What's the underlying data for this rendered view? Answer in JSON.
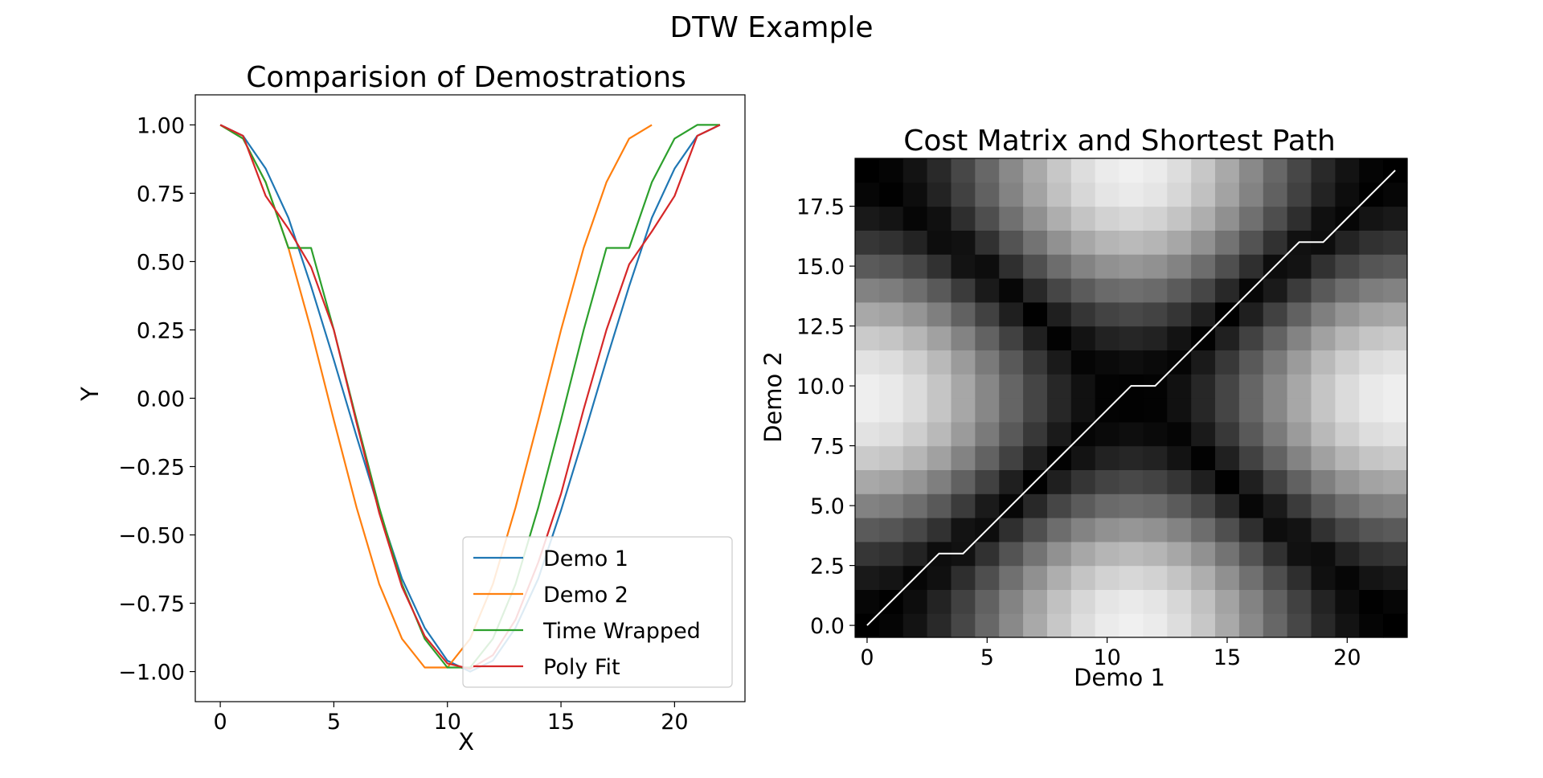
{
  "suptitle": "DTW Example",
  "chart_data": [
    {
      "type": "line",
      "title": "Comparision of Demostrations",
      "xlabel": "X",
      "ylabel": "Y",
      "xlim": [
        -1.1,
        23.1
      ],
      "ylim": [
        -1.11,
        1.11
      ],
      "xticks": [
        0,
        5,
        10,
        15,
        20
      ],
      "xtick_labels": [
        "0",
        "5",
        "10",
        "15",
        "20"
      ],
      "yticks": [
        1.0,
        0.75,
        0.5,
        0.25,
        0.0,
        -0.25,
        -0.5,
        -0.75,
        -1.0
      ],
      "ytick_labels": [
        "1.00",
        "0.75",
        "0.50",
        "0.25",
        "0.00",
        "−0.25",
        "−0.50",
        "−0.75",
        "−1.00"
      ],
      "grid": false,
      "legend_position": "lower-right",
      "series": [
        {
          "name": "Demo 1",
          "color": "#1f77b4",
          "x": [
            0,
            1,
            2,
            3,
            4,
            5,
            6,
            7,
            8,
            9,
            10,
            11,
            12,
            13,
            14,
            15,
            16,
            17,
            18,
            19,
            20,
            21,
            22
          ],
          "y": [
            1.0,
            0.96,
            0.84,
            0.66,
            0.41,
            0.14,
            -0.14,
            -0.41,
            -0.66,
            -0.84,
            -0.96,
            -1.0,
            -0.96,
            -0.84,
            -0.66,
            -0.41,
            -0.14,
            0.14,
            0.41,
            0.66,
            0.84,
            0.96,
            1.0
          ]
        },
        {
          "name": "Demo 2",
          "color": "#ff7f0e",
          "x": [
            0,
            1,
            2,
            3,
            4,
            5,
            6,
            7,
            8,
            9,
            10,
            11,
            12,
            13,
            14,
            15,
            16,
            17,
            18,
            19
          ],
          "y": [
            1.0,
            0.95,
            0.79,
            0.55,
            0.25,
            -0.08,
            -0.4,
            -0.68,
            -0.88,
            -0.985,
            -0.985,
            -0.88,
            -0.68,
            -0.4,
            -0.08,
            0.25,
            0.55,
            0.79,
            0.95,
            1.0
          ]
        },
        {
          "name": "Time Wrapped",
          "color": "#2ca02c",
          "x": [
            0,
            1,
            2,
            3,
            4,
            5,
            6,
            7,
            8,
            9,
            10,
            11,
            12,
            13,
            14,
            15,
            16,
            17,
            18,
            19,
            20,
            21,
            22
          ],
          "y": [
            1.0,
            0.95,
            0.79,
            0.55,
            0.55,
            0.25,
            -0.08,
            -0.4,
            -0.68,
            -0.88,
            -0.985,
            -0.985,
            -0.88,
            -0.68,
            -0.4,
            -0.08,
            0.25,
            0.55,
            0.55,
            0.79,
            0.95,
            1.0,
            1.0
          ]
        },
        {
          "name": "Poly Fit",
          "color": "#d62728",
          "x": [
            0,
            1,
            2,
            3,
            4,
            5,
            6,
            7,
            8,
            9,
            10,
            11,
            12,
            13,
            14,
            15,
            16,
            17,
            18,
            19,
            20,
            21,
            22
          ],
          "y": [
            1.0,
            0.96,
            0.74,
            0.62,
            0.48,
            0.25,
            -0.09,
            -0.42,
            -0.69,
            -0.87,
            -0.97,
            -0.99,
            -0.94,
            -0.81,
            -0.6,
            -0.35,
            -0.04,
            0.25,
            0.49,
            0.61,
            0.74,
            0.96,
            1.0
          ]
        }
      ]
    },
    {
      "type": "heatmap",
      "title": "Cost Matrix and Shortest Path",
      "xlabel": "Demo 1",
      "ylabel": "Demo 2",
      "xlim": [
        -0.5,
        22.5
      ],
      "ylim": [
        -0.5,
        19.5
      ],
      "xticks": [
        0,
        5,
        10,
        15,
        20
      ],
      "xtick_labels": [
        "0",
        "5",
        "10",
        "15",
        "20"
      ],
      "yticks": [
        0,
        2.5,
        5,
        7.5,
        10,
        12.5,
        15,
        17.5
      ],
      "ytick_labels": [
        "0.0",
        "2.5",
        "5.0",
        "7.5",
        "10.0",
        "12.5",
        "15.0",
        "17.5"
      ],
      "colormap": "gray",
      "cost": "absolute difference between Demo 1 and Demo 2 values",
      "path_color": "#ffffff",
      "path": [
        [
          0,
          0
        ],
        [
          1,
          1
        ],
        [
          2,
          2
        ],
        [
          3,
          3
        ],
        [
          4,
          3
        ],
        [
          5,
          4
        ],
        [
          6,
          5
        ],
        [
          7,
          6
        ],
        [
          8,
          7
        ],
        [
          9,
          8
        ],
        [
          10,
          9
        ],
        [
          11,
          10
        ],
        [
          12,
          10
        ],
        [
          13,
          11
        ],
        [
          14,
          12
        ],
        [
          15,
          13
        ],
        [
          16,
          14
        ],
        [
          17,
          15
        ],
        [
          18,
          16
        ],
        [
          19,
          16
        ],
        [
          20,
          17
        ],
        [
          21,
          18
        ],
        [
          22,
          19
        ]
      ]
    }
  ]
}
